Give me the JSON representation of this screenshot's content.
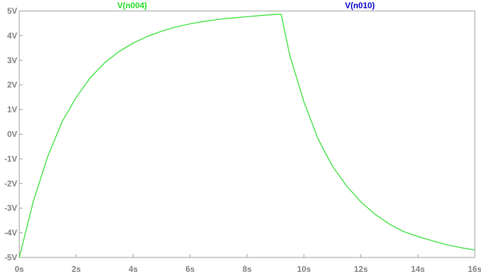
{
  "chart_data": {
    "type": "line",
    "xlabel": "",
    "ylabel": "",
    "xlim": [
      0,
      16
    ],
    "ylim": [
      -5,
      5
    ],
    "grid": false,
    "x_ticks": [
      {
        "value": 0,
        "label": "0s"
      },
      {
        "value": 2,
        "label": "2s"
      },
      {
        "value": 4,
        "label": "4s"
      },
      {
        "value": 6,
        "label": "6s"
      },
      {
        "value": 8,
        "label": "8s"
      },
      {
        "value": 10,
        "label": "10s"
      },
      {
        "value": 12,
        "label": "12s"
      },
      {
        "value": 14,
        "label": "14s"
      },
      {
        "value": 16,
        "label": "16s"
      }
    ],
    "y_ticks": [
      {
        "value": 5,
        "label": "5V"
      },
      {
        "value": 4,
        "label": "4V"
      },
      {
        "value": 3,
        "label": "3V"
      },
      {
        "value": 2,
        "label": "2V"
      },
      {
        "value": 1,
        "label": "1V"
      },
      {
        "value": 0,
        "label": "0V"
      },
      {
        "value": -1,
        "label": "-1V"
      },
      {
        "value": -2,
        "label": "-2V"
      },
      {
        "value": -3,
        "label": "-3V"
      },
      {
        "value": -4,
        "label": "-4V"
      },
      {
        "value": -5,
        "label": "-5V"
      }
    ],
    "series": [
      {
        "name": "V(n004)",
        "color": "#22dd22",
        "x": [
          0,
          0.5,
          1,
          1.5,
          2,
          2.5,
          3,
          3.5,
          4,
          4.5,
          5,
          5.5,
          6,
          6.5,
          7,
          7.5,
          8,
          8.5,
          9,
          9.2,
          9.5,
          10,
          10.5,
          11,
          11.5,
          12,
          12.5,
          13,
          13.5,
          14,
          14.5,
          15,
          15.5,
          16
        ],
        "values": [
          -5,
          -2.7,
          -0.9,
          0.5,
          1.5,
          2.3,
          2.9,
          3.35,
          3.7,
          3.97,
          4.18,
          4.35,
          4.48,
          4.58,
          4.66,
          4.72,
          4.77,
          4.82,
          4.86,
          4.87,
          3.2,
          1.3,
          -0.2,
          -1.3,
          -2.1,
          -2.75,
          -3.25,
          -3.65,
          -3.95,
          -4.15,
          -4.32,
          -4.48,
          -4.6,
          -4.7
        ]
      },
      {
        "name": "V(n010)",
        "color": "#0000cc",
        "x": [],
        "values": []
      }
    ]
  }
}
